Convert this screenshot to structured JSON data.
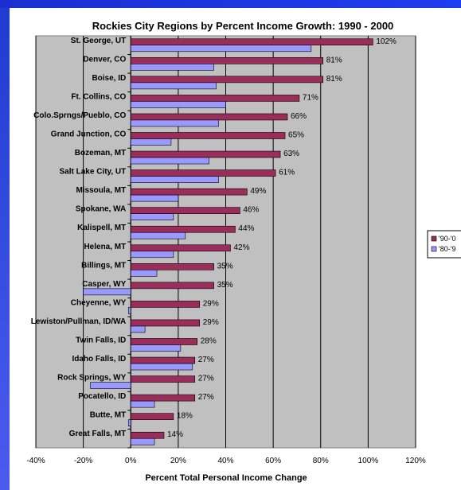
{
  "colors": {
    "series_90s": "#9b2d5b",
    "series_80s": "#9999ff",
    "plot_bg": "#c0c0c0",
    "grid": "#000000"
  },
  "chart_data": {
    "type": "bar",
    "orientation": "horizontal",
    "title": "Rockies City Regions by Percent Income Growth: 1990 - 2000",
    "xlabel": "Percent Total Personal Income Change",
    "ylabel": "",
    "xlim": [
      -40,
      120
    ],
    "x_ticks": [
      "-40%",
      "-20%",
      "0%",
      "20%",
      "40%",
      "60%",
      "80%",
      "100%",
      "120%"
    ],
    "grid": true,
    "legend_position": "right",
    "categories": [
      "St. George, UT",
      "Denver, CO",
      "Boise, ID",
      "Ft. Collins, CO",
      "Colo.Sprngs/Pueblo, CO",
      "Grand Junction, CO",
      "Bozeman, MT",
      "Salt Lake City, UT",
      "Missoula, MT",
      "Spokane, WA",
      "Kalispell, MT",
      "Helena, MT",
      "Billings, MT",
      "Casper, WY",
      "Cheyenne, WY",
      "Lewiston/Pullman, ID/WA",
      "Twin Falls, ID",
      "Idaho Falls, ID",
      "Rock Springs, WY",
      "Pocatello, ID",
      "Butte, MT",
      "Great Falls, MT"
    ],
    "series": [
      {
        "name": "'90-'0",
        "values": [
          102,
          81,
          81,
          71,
          66,
          65,
          63,
          61,
          49,
          46,
          44,
          42,
          35,
          35,
          29,
          29,
          28,
          27,
          27,
          27,
          18,
          14
        ],
        "labels": [
          "102%",
          "81%",
          "81%",
          "71%",
          "66%",
          "65%",
          "63%",
          "61%",
          "49%",
          "46%",
          "44%",
          "42%",
          "35%",
          "35%",
          "29%",
          "29%",
          "28%",
          "27%",
          "27%",
          "27%",
          "18%",
          "14%"
        ]
      },
      {
        "name": "'80-'9",
        "values": [
          76,
          35,
          36,
          40,
          37,
          17,
          33,
          37,
          20,
          18,
          23,
          18,
          11,
          -20,
          -1,
          6,
          21,
          26,
          -17,
          10,
          -1,
          10
        ]
      }
    ]
  }
}
